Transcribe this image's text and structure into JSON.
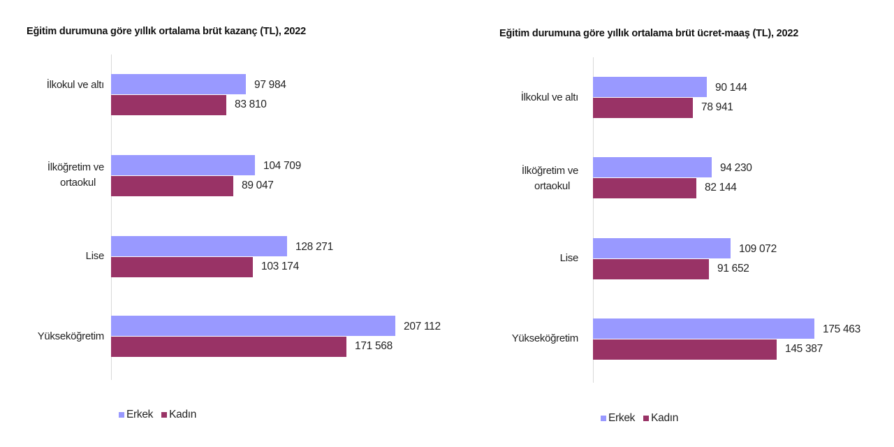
{
  "colors": {
    "erkek": "#9999ff",
    "kadin": "#993366",
    "axis": "#d9d9d9"
  },
  "chart_data": [
    {
      "type": "bar",
      "orientation": "horizontal",
      "title": "Eğitim durumuna göre yıllık ortalama brüt kazanç (TL), 2022",
      "xlabel": "",
      "ylabel": "",
      "grid": false,
      "legend_position": "bottom-left",
      "categories": [
        "İlkokul ve altı",
        "İlköğretim ve ortaokul",
        "Lise",
        "Yükseköğretim"
      ],
      "category_lines": [
        [
          "İlkokul ve altı"
        ],
        [
          "İlköğretim ve",
          "ortaokul"
        ],
        [
          "Lise"
        ],
        [
          "Yükseköğretim"
        ]
      ],
      "series": [
        {
          "name": "Erkek",
          "values": [
            97984,
            104709,
            128271,
            207112
          ],
          "labels": [
            "97 984",
            "104 709",
            "128 271",
            "207 112"
          ]
        },
        {
          "name": "Kadın",
          "values": [
            83810,
            89047,
            103174,
            171568
          ],
          "labels": [
            "83 810",
            "89 047",
            "103 174",
            "171 568"
          ]
        }
      ]
    },
    {
      "type": "bar",
      "orientation": "horizontal",
      "title": "Eğitim durumuna göre yıllık ortalama brüt ücret-maaş (TL), 2022",
      "xlabel": "",
      "ylabel": "",
      "grid": false,
      "legend_position": "bottom-left",
      "categories": [
        "İlkokul ve altı",
        "İlköğretim ve ortaokul",
        "Lise",
        "Yükseköğretim"
      ],
      "category_lines": [
        [
          "İlkokul ve altı"
        ],
        [
          "İlköğretim ve",
          "ortaokul"
        ],
        [
          "Lise"
        ],
        [
          "Yükseköğretim"
        ]
      ],
      "series": [
        {
          "name": "Erkek",
          "values": [
            90144,
            94230,
            109072,
            175463
          ],
          "labels": [
            "90 144",
            "94 230",
            "109 072",
            "175 463"
          ]
        },
        {
          "name": "Kadın",
          "values": [
            78941,
            82144,
            91652,
            145387
          ],
          "labels": [
            "78 941",
            "82 144",
            "91 652",
            "145 387"
          ]
        }
      ]
    }
  ],
  "legend": {
    "erkek_label": "Erkek",
    "kadin_label": "Kadın"
  }
}
